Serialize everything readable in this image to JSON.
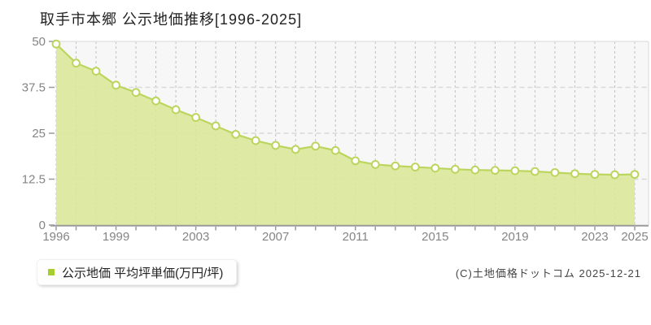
{
  "title": "取手市本郷 公示地価推移[1996-2025]",
  "legend": {
    "label": "公示地価 平均坪単価(万円/坪)",
    "marker_color": "#a8ce2c"
  },
  "footer": {
    "copyright": "(C)土地価格ドットコム 2025-12-21"
  },
  "chart_data": {
    "type": "area",
    "title": "取手市本郷 公示地価推移[1996-2025]",
    "xlabel": "",
    "ylabel": "公示地価 平均坪単価(万円/坪)",
    "x": [
      1996,
      1997,
      1998,
      1999,
      2000,
      2001,
      2002,
      2003,
      2004,
      2005,
      2006,
      2007,
      2008,
      2009,
      2010,
      2011,
      2012,
      2013,
      2014,
      2015,
      2016,
      2017,
      2018,
      2019,
      2020,
      2021,
      2022,
      2023,
      2024,
      2025
    ],
    "series": [
      {
        "name": "公示地価 平均坪単価(万円/坪)",
        "values": [
          49.3,
          44.1,
          41.9,
          38.1,
          36.1,
          33.8,
          31.4,
          29.3,
          27.0,
          24.7,
          23.0,
          21.7,
          20.6,
          21.5,
          20.3,
          17.5,
          16.5,
          16.1,
          15.8,
          15.5,
          15.2,
          15.0,
          14.9,
          14.8,
          14.6,
          14.3,
          14.0,
          13.8,
          13.7,
          13.8
        ]
      }
    ],
    "ylim": [
      0,
      50
    ],
    "yticks": [
      0,
      12.5,
      25,
      37.5,
      50
    ],
    "ytick_labels": [
      "0",
      "12.5",
      "25",
      "37.5",
      "50"
    ],
    "xtick_labels": [
      1996,
      1999,
      2003,
      2007,
      2011,
      2015,
      2019,
      2023,
      2025
    ],
    "grid": true,
    "legend_position": "bottom-left",
    "colors": {
      "area_fill": "#dbe897",
      "line": "#bcd55e",
      "marker_fill": "#ffffff",
      "marker_stroke": "#bcd55e",
      "plot_background": "#f7f7f7",
      "grid_vertical": "#c0c0c0",
      "grid_horizontal": "#d9d9d9",
      "axis": "#9a9a9a",
      "tick_label": "#858585",
      "border": "#e4e4e4"
    }
  }
}
